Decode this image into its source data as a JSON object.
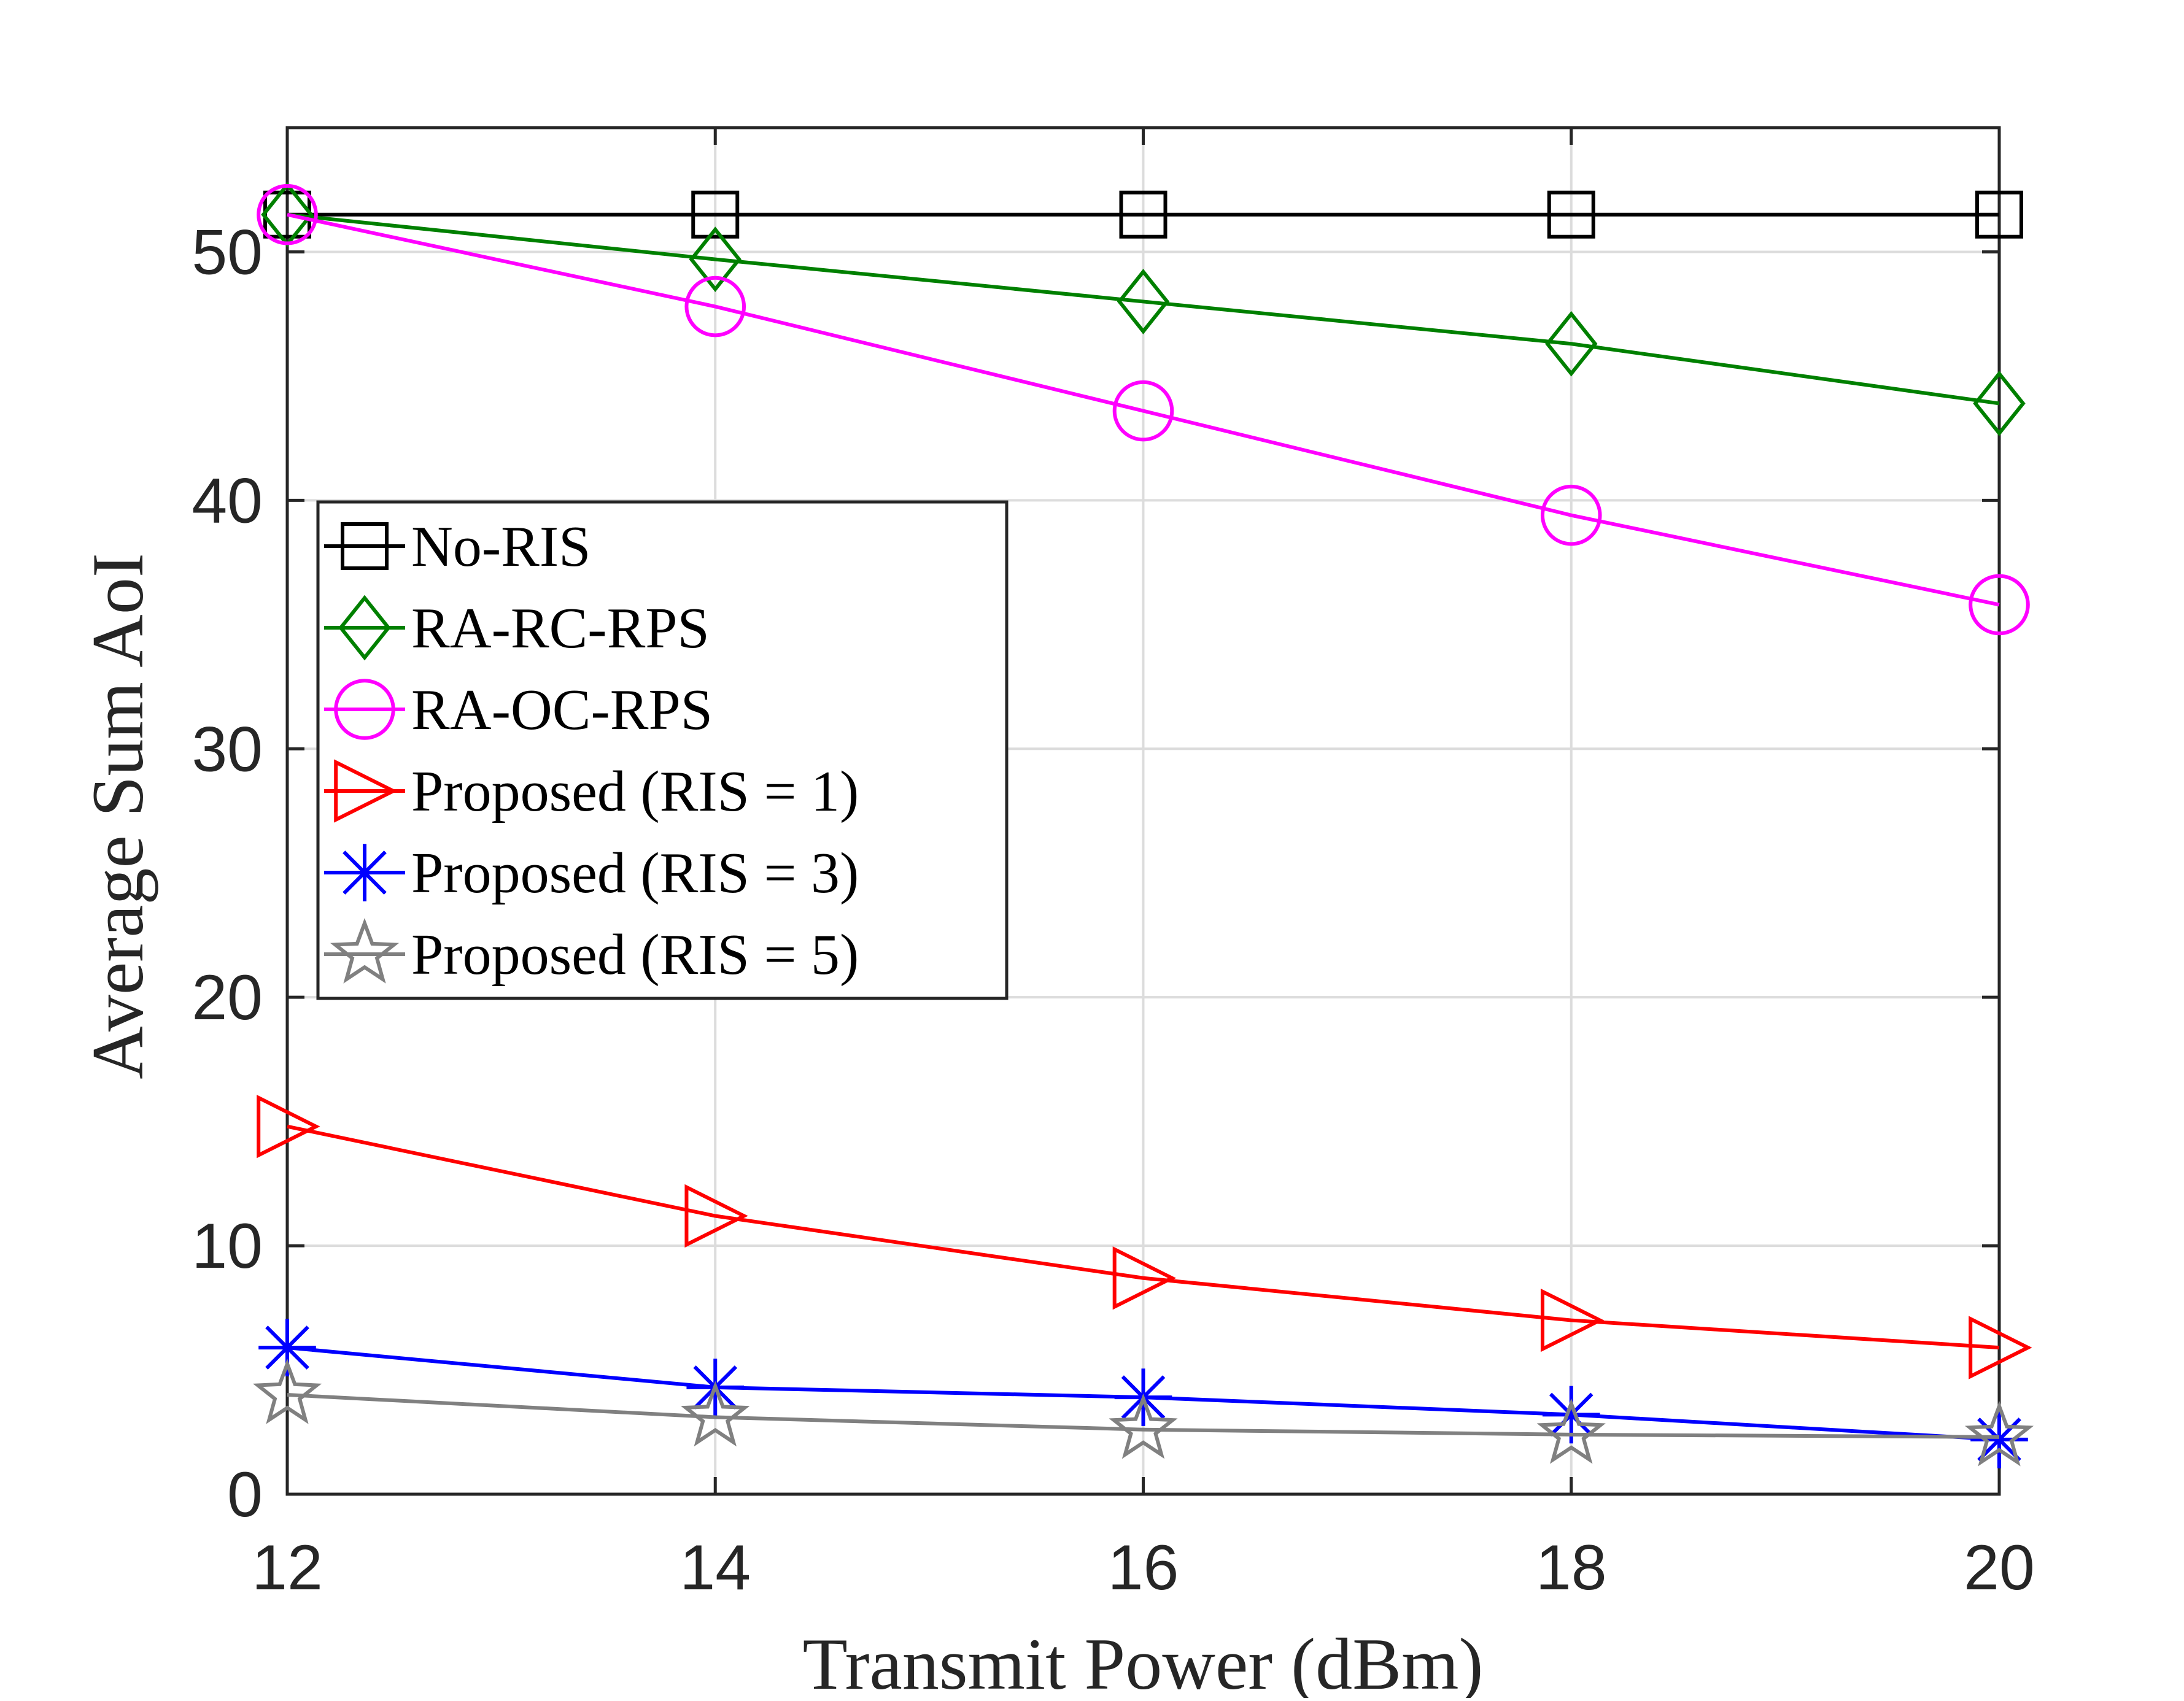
{
  "chart_data": {
    "type": "line",
    "title": "",
    "xlabel": "Transmit Power (dBm)",
    "ylabel": "Average Sum AoI",
    "x": [
      12,
      14,
      16,
      18,
      20
    ],
    "xlim": [
      12,
      20
    ],
    "ylim": [
      0,
      55
    ],
    "xticks": [
      "12",
      "14",
      "16",
      "18",
      "20"
    ],
    "yticks": [
      "0",
      "10",
      "20",
      "30",
      "40",
      "50"
    ],
    "grid": true,
    "legend_position": "left",
    "series": [
      {
        "name": "No-RIS",
        "color": "#000000",
        "marker": "square",
        "values": [
          51.5,
          51.5,
          51.5,
          51.5,
          51.5
        ]
      },
      {
        "name": "RA-RC-RPS",
        "color": "#008000",
        "marker": "diamond",
        "values": [
          51.5,
          49.7,
          48.0,
          46.3,
          43.9
        ]
      },
      {
        "name": "RA-OC-RPS",
        "color": "#ff00ff",
        "marker": "circle",
        "values": [
          51.5,
          47.8,
          43.6,
          39.4,
          35.8
        ]
      },
      {
        "name": "Proposed (RIS = 1)",
        "color": "#ff0000",
        "marker": "triangle-right",
        "values": [
          14.8,
          11.2,
          8.7,
          7.0,
          5.9
        ]
      },
      {
        "name": "Proposed (RIS = 3)",
        "color": "#0000ff",
        "marker": "asterisk",
        "values": [
          5.9,
          4.3,
          3.9,
          3.2,
          2.2
        ]
      },
      {
        "name": "Proposed (RIS = 5)",
        "color": "#808080",
        "marker": "star",
        "values": [
          4.0,
          3.1,
          2.6,
          2.4,
          2.3
        ]
      }
    ]
  }
}
